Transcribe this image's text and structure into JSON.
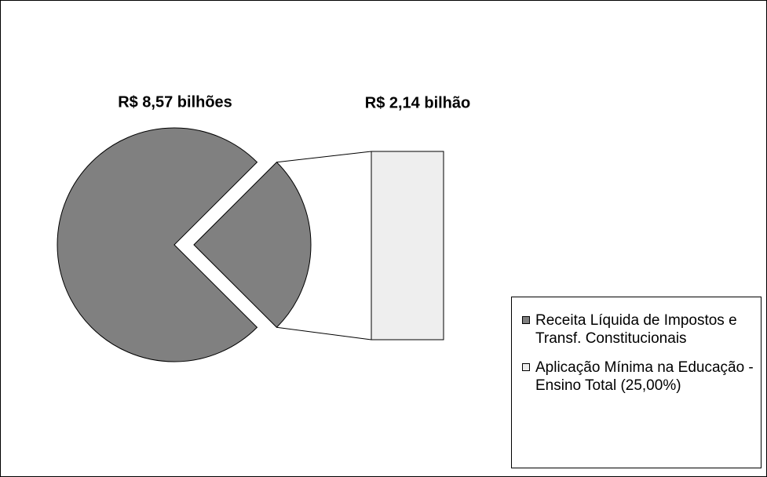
{
  "chart_data": {
    "type": "pie",
    "categories": [
      "Receita Líquida de Impostos e Transf. Constitucionais",
      "Aplicação Mínima na Educação - Ensino Total (25,00%)"
    ],
    "values": [
      8.57,
      2.14
    ],
    "value_labels": [
      "R$ 8,57 bilhões",
      "R$ 2,14 bilhão"
    ],
    "colors": [
      "#808080",
      "#eeeeee"
    ],
    "legend": "right"
  }
}
